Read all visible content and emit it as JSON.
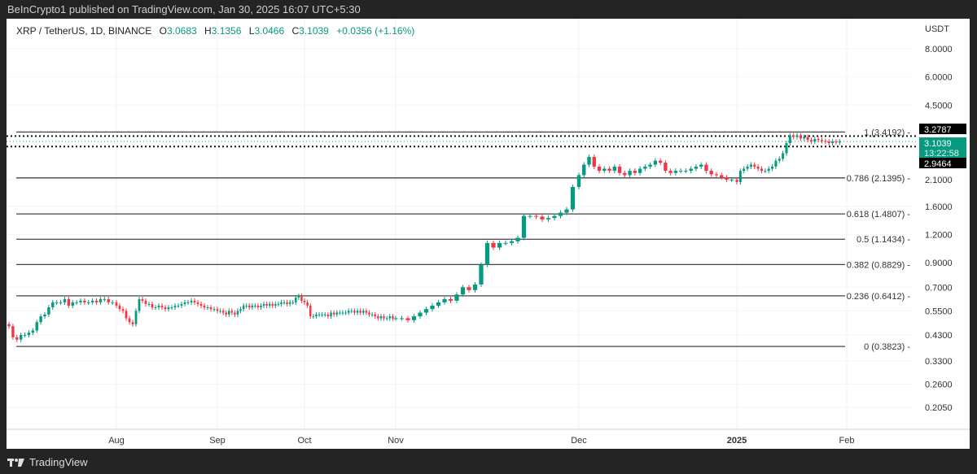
{
  "header": {
    "published": "BeInCrypto1 published on TradingView.com, Jan 30, 2025 16:07 UTC+5:30"
  },
  "legend": {
    "symbol": "XRP / TetherUS, 1D, BINANCE",
    "o_label": "O",
    "o": "3.0683",
    "h_label": "H",
    "h": "3.1356",
    "l_label": "L",
    "l": "3.0466",
    "c_label": "C",
    "c": "3.1039",
    "change": "+0.0356 (+1.16%)"
  },
  "footer": {
    "brand": "TradingView"
  },
  "colors": {
    "up": "#089981",
    "down": "#f23645",
    "price_tag": "#089981",
    "tag_dark": "#000000"
  },
  "chart_data": {
    "type": "candlestick",
    "scale": "log",
    "currency": "USDT",
    "ylim": [
      0.19,
      9.5
    ],
    "y_ticks": [
      "8.0000",
      "6.0000",
      "4.5000",
      "2.1000",
      "1.6000",
      "1.2000",
      "0.9000",
      "0.7000",
      "0.5500",
      "0.4300",
      "0.3300",
      "0.2600",
      "0.2050"
    ],
    "x_ticks": [
      {
        "label": "Aug",
        "date": "2024-08-01"
      },
      {
        "label": "Sep",
        "date": "2024-09-01"
      },
      {
        "label": "Oct",
        "date": "2024-10-01"
      },
      {
        "label": "Nov",
        "date": "2024-11-01"
      },
      {
        "label": "Dec",
        "date": "2024-12-01"
      },
      {
        "label": "2025",
        "date": "2025-01-01",
        "bold": true
      },
      {
        "label": "Feb",
        "date": "2025-02-01"
      }
    ],
    "start_date": "2024-07-05",
    "first_open": 0.48,
    "daily_closes": [
      0.47,
      0.42,
      0.41,
      0.43,
      0.43,
      0.44,
      0.45,
      0.49,
      0.52,
      0.53,
      0.57,
      0.6,
      0.6,
      0.6,
      0.62,
      0.58,
      0.6,
      0.6,
      0.61,
      0.6,
      0.6,
      0.61,
      0.6,
      0.62,
      0.62,
      0.6,
      0.6,
      0.58,
      0.56,
      0.55,
      0.51,
      0.49,
      0.48,
      0.55,
      0.62,
      0.61,
      0.59,
      0.59,
      0.57,
      0.57,
      0.58,
      0.57,
      0.56,
      0.57,
      0.57,
      0.58,
      0.58,
      0.59,
      0.6,
      0.6,
      0.61,
      0.6,
      0.59,
      0.58,
      0.57,
      0.57,
      0.56,
      0.56,
      0.55,
      0.55,
      0.54,
      0.53,
      0.55,
      0.54,
      0.53,
      0.55,
      0.56,
      0.58,
      0.58,
      0.57,
      0.58,
      0.58,
      0.57,
      0.58,
      0.59,
      0.58,
      0.59,
      0.58,
      0.59,
      0.59,
      0.6,
      0.6,
      0.59,
      0.6,
      0.6,
      0.63,
      0.64,
      0.61,
      0.6,
      0.58,
      0.52,
      0.52,
      0.53,
      0.53,
      0.53,
      0.53,
      0.52,
      0.54,
      0.53,
      0.54,
      0.54,
      0.54,
      0.54,
      0.55,
      0.55,
      0.54,
      0.55,
      0.54,
      0.55,
      0.54,
      0.53,
      0.53,
      0.52,
      0.51,
      0.52,
      0.51,
      0.51,
      0.52,
      0.51,
      0.51,
      0.51,
      0.5,
      0.52,
      0.54,
      0.56,
      0.58,
      0.6,
      0.62,
      0.61,
      0.65,
      0.7,
      0.68,
      0.72,
      0.88,
      1.1,
      1.05,
      1.1,
      1.1,
      1.12,
      1.16,
      1.45,
      1.45,
      1.44,
      1.4,
      1.42,
      1.45,
      1.5,
      1.55,
      1.95,
      2.2,
      2.45,
      2.65,
      2.4,
      2.3,
      2.35,
      2.3,
      2.4,
      2.25,
      2.2,
      2.3,
      2.25,
      2.35,
      2.4,
      2.45,
      2.55,
      2.5,
      2.3,
      2.25,
      2.3,
      2.3,
      2.3,
      2.35,
      2.4,
      2.45,
      2.3,
      2.22,
      2.2,
      2.15,
      2.1,
      2.1,
      2.05,
      2.3,
      2.35,
      2.4,
      2.45,
      2.4,
      2.35,
      2.3,
      2.3,
      2.35,
      2.4,
      2.55,
      2.6,
      2.75,
      3.05,
      3.3,
      3.25,
      3.3,
      3.2,
      3.25,
      3.15,
      3.1,
      3.18,
      3.15,
      3.12,
      3.1,
      3.05,
      3.1,
      3.07,
      3.1039
    ],
    "fib_levels": [
      {
        "label": "1 (3.4192)",
        "value": 3.4192
      },
      {
        "label": "0.786 (2.1395)",
        "value": 2.1395
      },
      {
        "label": "0.618 (1.4807)",
        "value": 1.4807
      },
      {
        "label": "0.5 (1.1434)",
        "value": 1.1434
      },
      {
        "label": "0.382 (0.8829)",
        "value": 0.8829
      },
      {
        "label": "0.236 (0.6412)",
        "value": 0.6412
      },
      {
        "label": "0 (0.3823)",
        "value": 0.3823
      }
    ],
    "price_tags": [
      {
        "label": "3.2787",
        "value": 3.2787,
        "style": "dark",
        "dotted": true
      },
      {
        "label": "3.1039",
        "sub": "13:22:58",
        "value": 3.1039,
        "style": "current",
        "dotted": true
      },
      {
        "label": "2.9464",
        "value": 2.9464,
        "style": "dark",
        "dotted": true
      }
    ]
  }
}
